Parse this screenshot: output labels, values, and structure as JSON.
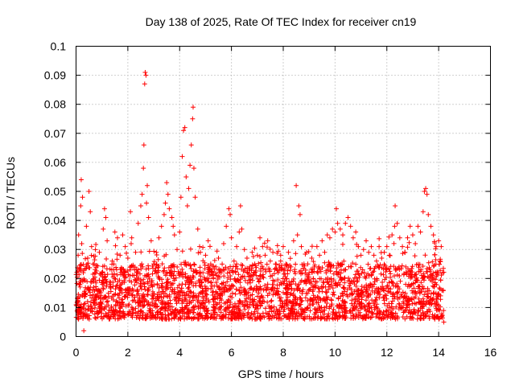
{
  "chart_data": {
    "type": "scatter",
    "title": "Day 138 of 2025, Rate Of TEC Index for receiver cn19",
    "xlabel": "GPS time / hours",
    "ylabel": "ROTI / TECUs",
    "xlim": [
      0,
      16
    ],
    "ylim": [
      0,
      0.1
    ],
    "x_ticks": [
      "0",
      "2",
      "4",
      "6",
      "8",
      "10",
      "12",
      "14",
      "16"
    ],
    "y_ticks": [
      "0",
      "0.01",
      "0.02",
      "0.03",
      "0.04",
      "0.05",
      "0.06",
      "0.07",
      "0.08",
      "0.09",
      "0.1"
    ],
    "grid": true,
    "marker": "plus",
    "color": "#ff0000",
    "series": [
      {
        "name": "ROTI",
        "points": [
          [
            0.05,
            0.012
          ],
          [
            0.08,
            0.028
          ],
          [
            0.1,
            0.035
          ],
          [
            0.12,
            0.018
          ],
          [
            0.15,
            0.009
          ],
          [
            0.18,
            0.045
          ],
          [
            0.2,
            0.054
          ],
          [
            0.22,
            0.032
          ],
          [
            0.25,
            0.048
          ],
          [
            0.28,
            0.022
          ],
          [
            0.3,
            0.002
          ],
          [
            0.35,
            0.015
          ],
          [
            0.4,
            0.038
          ],
          [
            0.45,
            0.027
          ],
          [
            0.5,
            0.05
          ],
          [
            0.55,
            0.043
          ],
          [
            0.6,
            0.031
          ],
          [
            0.65,
            0.019
          ],
          [
            0.7,
            0.025
          ],
          [
            0.8,
            0.014
          ],
          [
            0.9,
            0.029
          ],
          [
            1.0,
            0.022
          ],
          [
            1.05,
            0.037
          ],
          [
            1.1,
            0.044
          ],
          [
            1.15,
            0.041
          ],
          [
            1.2,
            0.033
          ],
          [
            1.3,
            0.018
          ],
          [
            1.4,
            0.026
          ],
          [
            1.5,
            0.036
          ],
          [
            1.6,
            0.034
          ],
          [
            1.7,
            0.028
          ],
          [
            1.8,
            0.035
          ],
          [
            1.9,
            0.031
          ],
          [
            2.0,
            0.027
          ],
          [
            2.1,
            0.043
          ],
          [
            2.15,
            0.034
          ],
          [
            2.2,
            0.024
          ],
          [
            2.3,
            0.029
          ],
          [
            2.4,
            0.039
          ],
          [
            2.5,
            0.045
          ],
          [
            2.55,
            0.049
          ],
          [
            2.6,
            0.058
          ],
          [
            2.62,
            0.066
          ],
          [
            2.65,
            0.087
          ],
          [
            2.67,
            0.091
          ],
          [
            2.7,
            0.09
          ],
          [
            2.72,
            0.046
          ],
          [
            2.75,
            0.052
          ],
          [
            2.8,
            0.041
          ],
          [
            2.9,
            0.033
          ],
          [
            3.0,
            0.025
          ],
          [
            3.1,
            0.029
          ],
          [
            3.2,
            0.034
          ],
          [
            3.3,
            0.038
          ],
          [
            3.4,
            0.042
          ],
          [
            3.45,
            0.046
          ],
          [
            3.5,
            0.053
          ],
          [
            3.55,
            0.049
          ],
          [
            3.6,
            0.044
          ],
          [
            3.7,
            0.041
          ],
          [
            3.75,
            0.038
          ],
          [
            3.8,
            0.035
          ],
          [
            3.9,
            0.03
          ],
          [
            4.0,
            0.036
          ],
          [
            4.05,
            0.048
          ],
          [
            4.1,
            0.062
          ],
          [
            4.15,
            0.071
          ],
          [
            4.2,
            0.072
          ],
          [
            4.25,
            0.055
          ],
          [
            4.3,
            0.045
          ],
          [
            4.35,
            0.051
          ],
          [
            4.4,
            0.059
          ],
          [
            4.45,
            0.066
          ],
          [
            4.5,
            0.075
          ],
          [
            4.52,
            0.079
          ],
          [
            4.55,
            0.058
          ],
          [
            4.6,
            0.048
          ],
          [
            4.7,
            0.037
          ],
          [
            4.8,
            0.029
          ],
          [
            4.9,
            0.022
          ],
          [
            5.0,
            0.028
          ],
          [
            5.1,
            0.033
          ],
          [
            5.2,
            0.025
          ],
          [
            5.3,
            0.02
          ],
          [
            5.4,
            0.024
          ],
          [
            5.5,
            0.027
          ],
          [
            5.6,
            0.022
          ],
          [
            5.7,
            0.032
          ],
          [
            5.8,
            0.038
          ],
          [
            5.9,
            0.044
          ],
          [
            5.95,
            0.042
          ],
          [
            6.0,
            0.034
          ],
          [
            6.1,
            0.026
          ],
          [
            6.2,
            0.031
          ],
          [
            6.3,
            0.036
          ],
          [
            6.35,
            0.045
          ],
          [
            6.4,
            0.037
          ],
          [
            6.5,
            0.03
          ],
          [
            6.6,
            0.027
          ],
          [
            6.7,
            0.024
          ],
          [
            6.8,
            0.029
          ],
          [
            6.9,
            0.025
          ],
          [
            7.0,
            0.028
          ],
          [
            7.1,
            0.034
          ],
          [
            7.2,
            0.031
          ],
          [
            7.3,
            0.028
          ],
          [
            7.4,
            0.033
          ],
          [
            7.5,
            0.026
          ],
          [
            7.6,
            0.029
          ],
          [
            7.7,
            0.025
          ],
          [
            7.8,
            0.022
          ],
          [
            7.9,
            0.028
          ],
          [
            8.0,
            0.031
          ],
          [
            8.1,
            0.025
          ],
          [
            8.2,
            0.029
          ],
          [
            8.3,
            0.024
          ],
          [
            8.4,
            0.033
          ],
          [
            8.5,
            0.052
          ],
          [
            8.55,
            0.035
          ],
          [
            8.6,
            0.045
          ],
          [
            8.65,
            0.042
          ],
          [
            8.7,
            0.031
          ],
          [
            8.8,
            0.025
          ],
          [
            8.9,
            0.029
          ],
          [
            9.0,
            0.022
          ],
          [
            9.1,
            0.027
          ],
          [
            9.2,
            0.024
          ],
          [
            9.3,
            0.031
          ],
          [
            9.4,
            0.028
          ],
          [
            9.5,
            0.033
          ],
          [
            9.6,
            0.029
          ],
          [
            9.7,
            0.035
          ],
          [
            9.8,
            0.034
          ],
          [
            9.9,
            0.037
          ],
          [
            10.0,
            0.036
          ],
          [
            10.05,
            0.044
          ],
          [
            10.1,
            0.039
          ],
          [
            10.2,
            0.037
          ],
          [
            10.3,
            0.035
          ],
          [
            10.4,
            0.039
          ],
          [
            10.5,
            0.041
          ],
          [
            10.6,
            0.038
          ],
          [
            10.7,
            0.034
          ],
          [
            10.8,
            0.036
          ],
          [
            10.9,
            0.031
          ],
          [
            11.0,
            0.028
          ],
          [
            11.1,
            0.03
          ],
          [
            11.2,
            0.033
          ],
          [
            11.3,
            0.029
          ],
          [
            11.4,
            0.031
          ],
          [
            11.5,
            0.028
          ],
          [
            11.6,
            0.026
          ],
          [
            11.7,
            0.031
          ],
          [
            11.8,
            0.027
          ],
          [
            11.9,
            0.029
          ],
          [
            12.0,
            0.031
          ],
          [
            12.1,
            0.028
          ],
          [
            12.2,
            0.035
          ],
          [
            12.3,
            0.038
          ],
          [
            12.32,
            0.045
          ],
          [
            12.4,
            0.039
          ],
          [
            12.5,
            0.034
          ],
          [
            12.6,
            0.031
          ],
          [
            12.7,
            0.029
          ],
          [
            12.8,
            0.034
          ],
          [
            12.9,
            0.038
          ],
          [
            13.0,
            0.035
          ],
          [
            13.1,
            0.032
          ],
          [
            13.2,
            0.038
          ],
          [
            13.3,
            0.036
          ],
          [
            13.4,
            0.043
          ],
          [
            13.45,
            0.05
          ],
          [
            13.5,
            0.051
          ],
          [
            13.55,
            0.049
          ],
          [
            13.6,
            0.042
          ],
          [
            13.7,
            0.038
          ],
          [
            13.8,
            0.035
          ],
          [
            13.9,
            0.031
          ],
          [
            14.0,
            0.033
          ],
          [
            14.05,
            0.026
          ],
          [
            14.1,
            0.031
          ],
          [
            14.15,
            0.022
          ],
          [
            14.2,
            0.005
          ]
        ],
        "base_band": {
          "x_range": [
            0.0,
            14.2
          ],
          "min_y": 0.004,
          "typical_y": [
            0.006,
            0.025
          ],
          "note": "dense cloud of plus markers between ~0.005 and ~0.03 across 0-14.2 h"
        }
      }
    ]
  }
}
